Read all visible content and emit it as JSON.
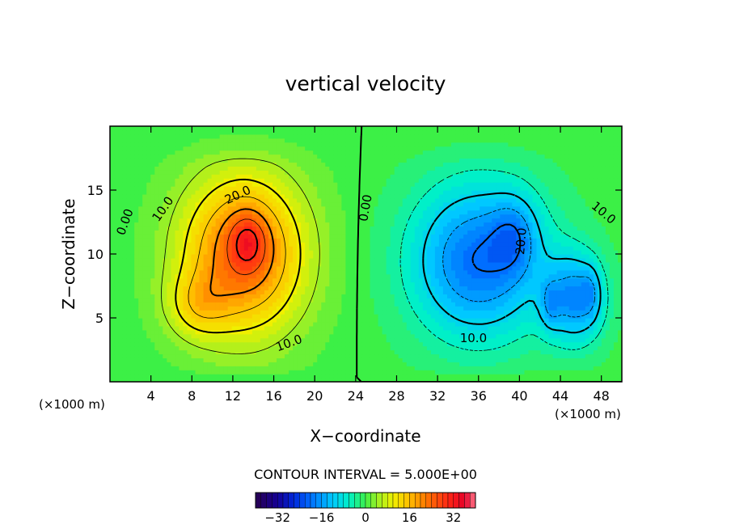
{
  "chart_data": {
    "type": "heatmap",
    "title": "vertical velocity",
    "xlabel": "X−coordinate",
    "ylabel": "Z−coordinate",
    "x_unit_left": "(×1000 m)",
    "x_unit_right": "(×1000 m)",
    "xlim": [
      0,
      50
    ],
    "ylim": [
      0,
      20
    ],
    "x_ticks": [
      4,
      8,
      12,
      16,
      20,
      24,
      28,
      32,
      36,
      40,
      44,
      48
    ],
    "y_ticks": [
      5,
      10,
      15
    ],
    "contour_interval_text": "CONTOUR INTERVAL = 5.000E+00",
    "colorbar_ticks": [
      -32,
      -16,
      0,
      16,
      32
    ],
    "colorbar_range": [
      -40,
      40
    ],
    "contour_labels": [
      {
        "text": "0.00",
        "x": 1.5,
        "z": 12.5,
        "angle": -70
      },
      {
        "text": "10.0",
        "x": 5.2,
        "z": 13.5,
        "angle": -55
      },
      {
        "text": "20.0",
        "x": 12.5,
        "z": 14.6,
        "angle": -25
      },
      {
        "text": "10.0",
        "x": 17.5,
        "z": 3.0,
        "angle": -20
      },
      {
        "text": "0.00",
        "x": 25.0,
        "z": 13.6,
        "angle": -80
      },
      {
        "text": "20.0",
        "x": 40.2,
        "z": 11.0,
        "angle": -85
      },
      {
        "text": "10.0",
        "x": 48.2,
        "z": 13.2,
        "angle": 40
      },
      {
        "text": "10.0",
        "x": 35.5,
        "z": 3.4,
        "angle": 0
      }
    ],
    "field_features": [
      {
        "name": "updraft",
        "center_x": 12.5,
        "center_z": 9.5,
        "peak": 35
      },
      {
        "name": "downdraft",
        "center_x": 36.5,
        "center_z": 9.5,
        "peak": -26
      },
      {
        "name": "downdraft-secondary",
        "center_x": 45.5,
        "center_z": 6.0,
        "peak": -22
      }
    ]
  }
}
